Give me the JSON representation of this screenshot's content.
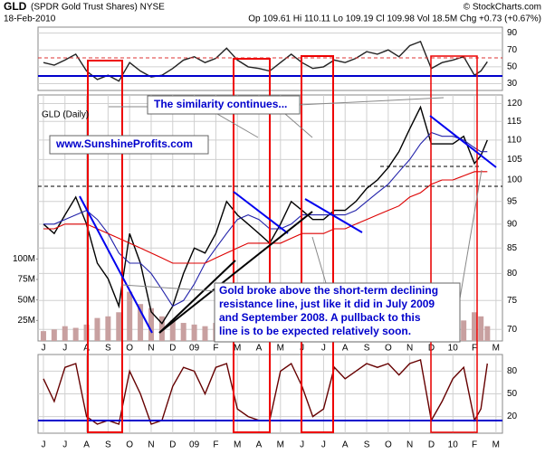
{
  "header": {
    "symbol": "GLD",
    "name": "(SPDR Gold Trust Shares) NYSE",
    "credit": "© StockCharts.com",
    "date": "18-Feb-2010",
    "quote": "Op 109.61  Hi 110.11  Lo 109.19  Cl 109.98  Vol 18.5M  Chg +0.73 (+0.67%)"
  },
  "chart_data": [
    {
      "type": "line",
      "x": [
        0,
        0.5,
        1,
        1.5,
        2,
        2.5,
        3,
        3.5,
        4,
        4.5,
        5,
        5.5,
        6,
        6.5,
        7,
        7.5,
        8,
        8.5,
        9,
        9.5,
        10,
        10.5,
        11,
        11.5,
        12,
        12.5,
        13,
        13.5,
        14,
        14.5,
        15,
        15.5,
        16,
        16.5,
        17,
        17.5,
        18,
        18.5,
        19,
        19.5,
        20,
        20.3,
        20.6
      ],
      "xlim": [
        -0.25,
        21.3
      ],
      "ylim": [
        22,
        97
      ],
      "yticks": [
        30,
        50,
        70,
        90
      ],
      "grid": true,
      "series": [
        {
          "color": "#222222",
          "values": [
            55,
            52,
            58,
            65,
            45,
            35,
            40,
            33,
            55,
            45,
            38,
            40,
            48,
            58,
            62,
            55,
            60,
            72,
            58,
            50,
            48,
            45,
            55,
            65,
            55,
            48,
            50,
            58,
            55,
            60,
            68,
            65,
            70,
            62,
            75,
            80,
            48,
            55,
            58,
            62,
            40,
            45,
            56
          ]
        }
      ]
    },
    {
      "type": "line",
      "title": "GLD (Daily)",
      "log": true,
      "x": [
        0,
        0.5,
        1,
        1.5,
        2,
        2.5,
        3,
        3.5,
        4,
        4.5,
        5,
        5.5,
        6,
        6.5,
        7,
        7.5,
        8,
        8.5,
        9,
        9.5,
        10,
        10.5,
        11,
        11.5,
        12,
        12.5,
        13,
        13.5,
        14,
        14.5,
        15,
        15.5,
        16,
        16.5,
        17,
        17.5,
        18,
        18.5,
        19,
        19.5,
        20,
        20.3,
        20.6
      ],
      "xlim": [
        -0.25,
        21.3
      ],
      "xticks": [
        {
          "value": 0,
          "label": "J"
        },
        {
          "value": 1,
          "label": "J"
        },
        {
          "value": 2,
          "label": "A"
        },
        {
          "value": 3,
          "label": "S"
        },
        {
          "value": 4,
          "label": "O"
        },
        {
          "value": 5,
          "label": "N"
        },
        {
          "value": 6,
          "label": "D"
        },
        {
          "value": 7,
          "label": "09"
        },
        {
          "value": 8,
          "label": "F"
        },
        {
          "value": 9,
          "label": "M"
        },
        {
          "value": 10,
          "label": "A"
        },
        {
          "value": 11,
          "label": "M"
        },
        {
          "value": 12,
          "label": "J"
        },
        {
          "value": 13,
          "label": "J"
        },
        {
          "value": 14,
          "label": "A"
        },
        {
          "value": 15,
          "label": "S"
        },
        {
          "value": 16,
          "label": "O"
        },
        {
          "value": 17,
          "label": "N"
        },
        {
          "value": 18,
          "label": "D"
        },
        {
          "value": 19,
          "label": "10"
        },
        {
          "value": 20,
          "label": "F"
        },
        {
          "value": 21,
          "label": "M"
        }
      ],
      "ylim": [
        68.1,
        122.5
      ],
      "yticks": [
        70,
        75,
        80,
        85,
        90,
        95,
        100,
        105,
        110,
        115,
        120
      ],
      "grid": true,
      "series": [
        {
          "color": "#000000",
          "values": [
            90,
            88,
            92,
            96,
            90,
            82,
            79,
            74,
            88,
            82,
            73,
            71,
            74,
            80,
            85,
            84,
            88,
            95,
            92,
            90,
            88,
            86,
            90,
            95,
            93,
            91,
            91,
            93,
            93,
            95,
            98,
            100,
            103,
            107,
            113,
            119,
            109,
            109,
            109,
            111,
            104,
            106,
            110
          ]
        },
        {
          "color": "#2222aa",
          "values": [
            90,
            90,
            91,
            92,
            93,
            91,
            88,
            84,
            82,
            82,
            80,
            77,
            74,
            75,
            78,
            82,
            85,
            88,
            91,
            92,
            91,
            89,
            89,
            90,
            92,
            92,
            92,
            92,
            92,
            93,
            95,
            97,
            99,
            102,
            105,
            109,
            112,
            111,
            111,
            110,
            108,
            107,
            107
          ]
        },
        {
          "color": "#dd0000",
          "values": [
            89,
            89,
            90,
            90,
            90,
            89,
            88,
            87,
            86,
            85,
            84,
            83,
            82,
            82,
            82,
            82,
            83,
            84,
            85,
            86,
            86,
            86,
            86,
            87,
            88,
            88,
            88,
            89,
            89,
            90,
            91,
            92,
            93,
            94,
            96,
            97,
            99,
            100,
            100,
            101,
            102,
            102,
            102
          ]
        }
      ],
      "volume": {
        "color": "#c8a0a0",
        "lim": [
          0,
          300000000
        ],
        "ticks": [
          {
            "value": 25000000,
            "label": "25M"
          },
          {
            "value": 50000000,
            "label": "50M"
          },
          {
            "value": 75000000,
            "label": "75M"
          },
          {
            "value": 100000000,
            "label": "100M"
          }
        ],
        "values": [
          12000000,
          14000000,
          18000000,
          16000000,
          20000000,
          28000000,
          30000000,
          35000000,
          60000000,
          45000000,
          40000000,
          30000000,
          25000000,
          22000000,
          20000000,
          18000000,
          22000000,
          28000000,
          25000000,
          18000000,
          15000000,
          14000000,
          16000000,
          20000000,
          15000000,
          12000000,
          12000000,
          14000000,
          13000000,
          16000000,
          18000000,
          17000000,
          20000000,
          22000000,
          25000000,
          30000000,
          28000000,
          20000000,
          22000000,
          25000000,
          35000000,
          30000000,
          18000000
        ]
      },
      "annotations": {
        "similarity": "The similarity continues...",
        "website": "www.SunshineProfits.com",
        "comment": [
          "Gold broke above the short-term declining",
          "resistance line, just like it did in July 2009",
          "and September 2008. A pullback to this",
          "line is to be expected relatively soon."
        ]
      }
    },
    {
      "type": "line",
      "x": [
        0,
        0.5,
        1,
        1.5,
        2,
        2.5,
        3,
        3.5,
        4,
        4.5,
        5,
        5.5,
        6,
        6.5,
        7,
        7.5,
        8,
        8.5,
        9,
        9.5,
        10,
        10.5,
        11,
        11.5,
        12,
        12.5,
        13,
        13.5,
        14,
        14.5,
        15,
        15.5,
        16,
        16.5,
        17,
        17.5,
        18,
        18.5,
        19,
        19.5,
        20,
        20.3,
        20.6
      ],
      "xlim": [
        -0.25,
        21.3
      ],
      "xticks": [
        {
          "value": 0,
          "label": "J"
        },
        {
          "value": 1,
          "label": "J"
        },
        {
          "value": 2,
          "label": "A"
        },
        {
          "value": 3,
          "label": "S"
        },
        {
          "value": 4,
          "label": "O"
        },
        {
          "value": 5,
          "label": "N"
        },
        {
          "value": 6,
          "label": "D"
        },
        {
          "value": 7,
          "label": "09"
        },
        {
          "value": 8,
          "label": "F"
        },
        {
          "value": 9,
          "label": "M"
        },
        {
          "value": 10,
          "label": "A"
        },
        {
          "value": 11,
          "label": "M"
        },
        {
          "value": 12,
          "label": "J"
        },
        {
          "value": 13,
          "label": "J"
        },
        {
          "value": 14,
          "label": "A"
        },
        {
          "value": 15,
          "label": "S"
        },
        {
          "value": 16,
          "label": "O"
        },
        {
          "value": 17,
          "label": "N"
        },
        {
          "value": 18,
          "label": "D"
        },
        {
          "value": 19,
          "label": "10"
        },
        {
          "value": 20,
          "label": "F"
        },
        {
          "value": 21,
          "label": "M"
        }
      ],
      "ylim": [
        -2,
        102
      ],
      "yticks": [
        20,
        50,
        80
      ],
      "grid": true,
      "series": [
        {
          "color": "#660000",
          "values": [
            70,
            40,
            85,
            90,
            20,
            10,
            15,
            10,
            80,
            50,
            10,
            15,
            60,
            85,
            80,
            50,
            85,
            90,
            30,
            20,
            15,
            15,
            80,
            90,
            60,
            20,
            30,
            85,
            70,
            80,
            90,
            85,
            90,
            75,
            90,
            95,
            15,
            40,
            70,
            85,
            15,
            30,
            90
          ]
        }
      ]
    }
  ]
}
